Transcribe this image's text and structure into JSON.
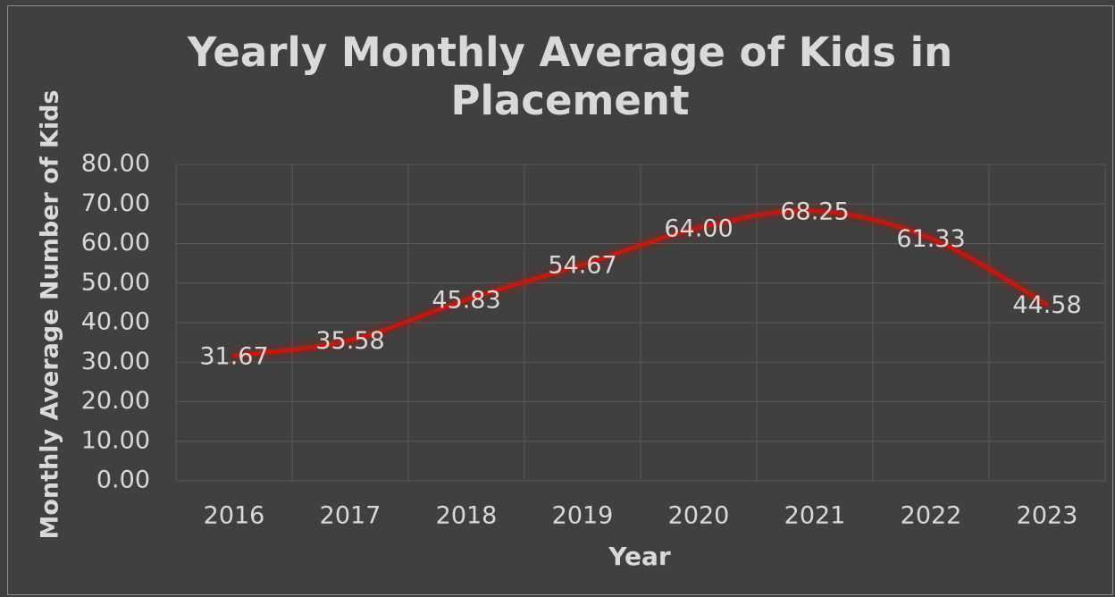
{
  "chart_data": {
    "type": "line",
    "title": "Yearly Monthly Average of Kids in Placement",
    "x_label": "Year",
    "y_label": "Monthly Average Number of Kids",
    "categories": [
      "2016",
      "2017",
      "2018",
      "2019",
      "2020",
      "2021",
      "2022",
      "2023"
    ],
    "values": [
      31.67,
      35.58,
      45.83,
      54.67,
      64.0,
      68.25,
      61.33,
      44.58
    ],
    "value_labels": [
      "31.67",
      "35.58",
      "45.83",
      "54.67",
      "64.00",
      "68.25",
      "61.33",
      "44.58"
    ],
    "color": "#c8160e",
    "ylim": [
      0,
      80
    ],
    "yticks": [
      {
        "value": 0,
        "label": "0.00"
      },
      {
        "value": 10,
        "label": "10.00"
      },
      {
        "value": 20,
        "label": "20.00"
      },
      {
        "value": 30,
        "label": "30.00"
      },
      {
        "value": 40,
        "label": "40.00"
      },
      {
        "value": 50,
        "label": "50.00"
      },
      {
        "value": 60,
        "label": "60.00"
      },
      {
        "value": 70,
        "label": "70.00"
      },
      {
        "value": 80,
        "label": "80.00"
      }
    ],
    "grid": true
  }
}
